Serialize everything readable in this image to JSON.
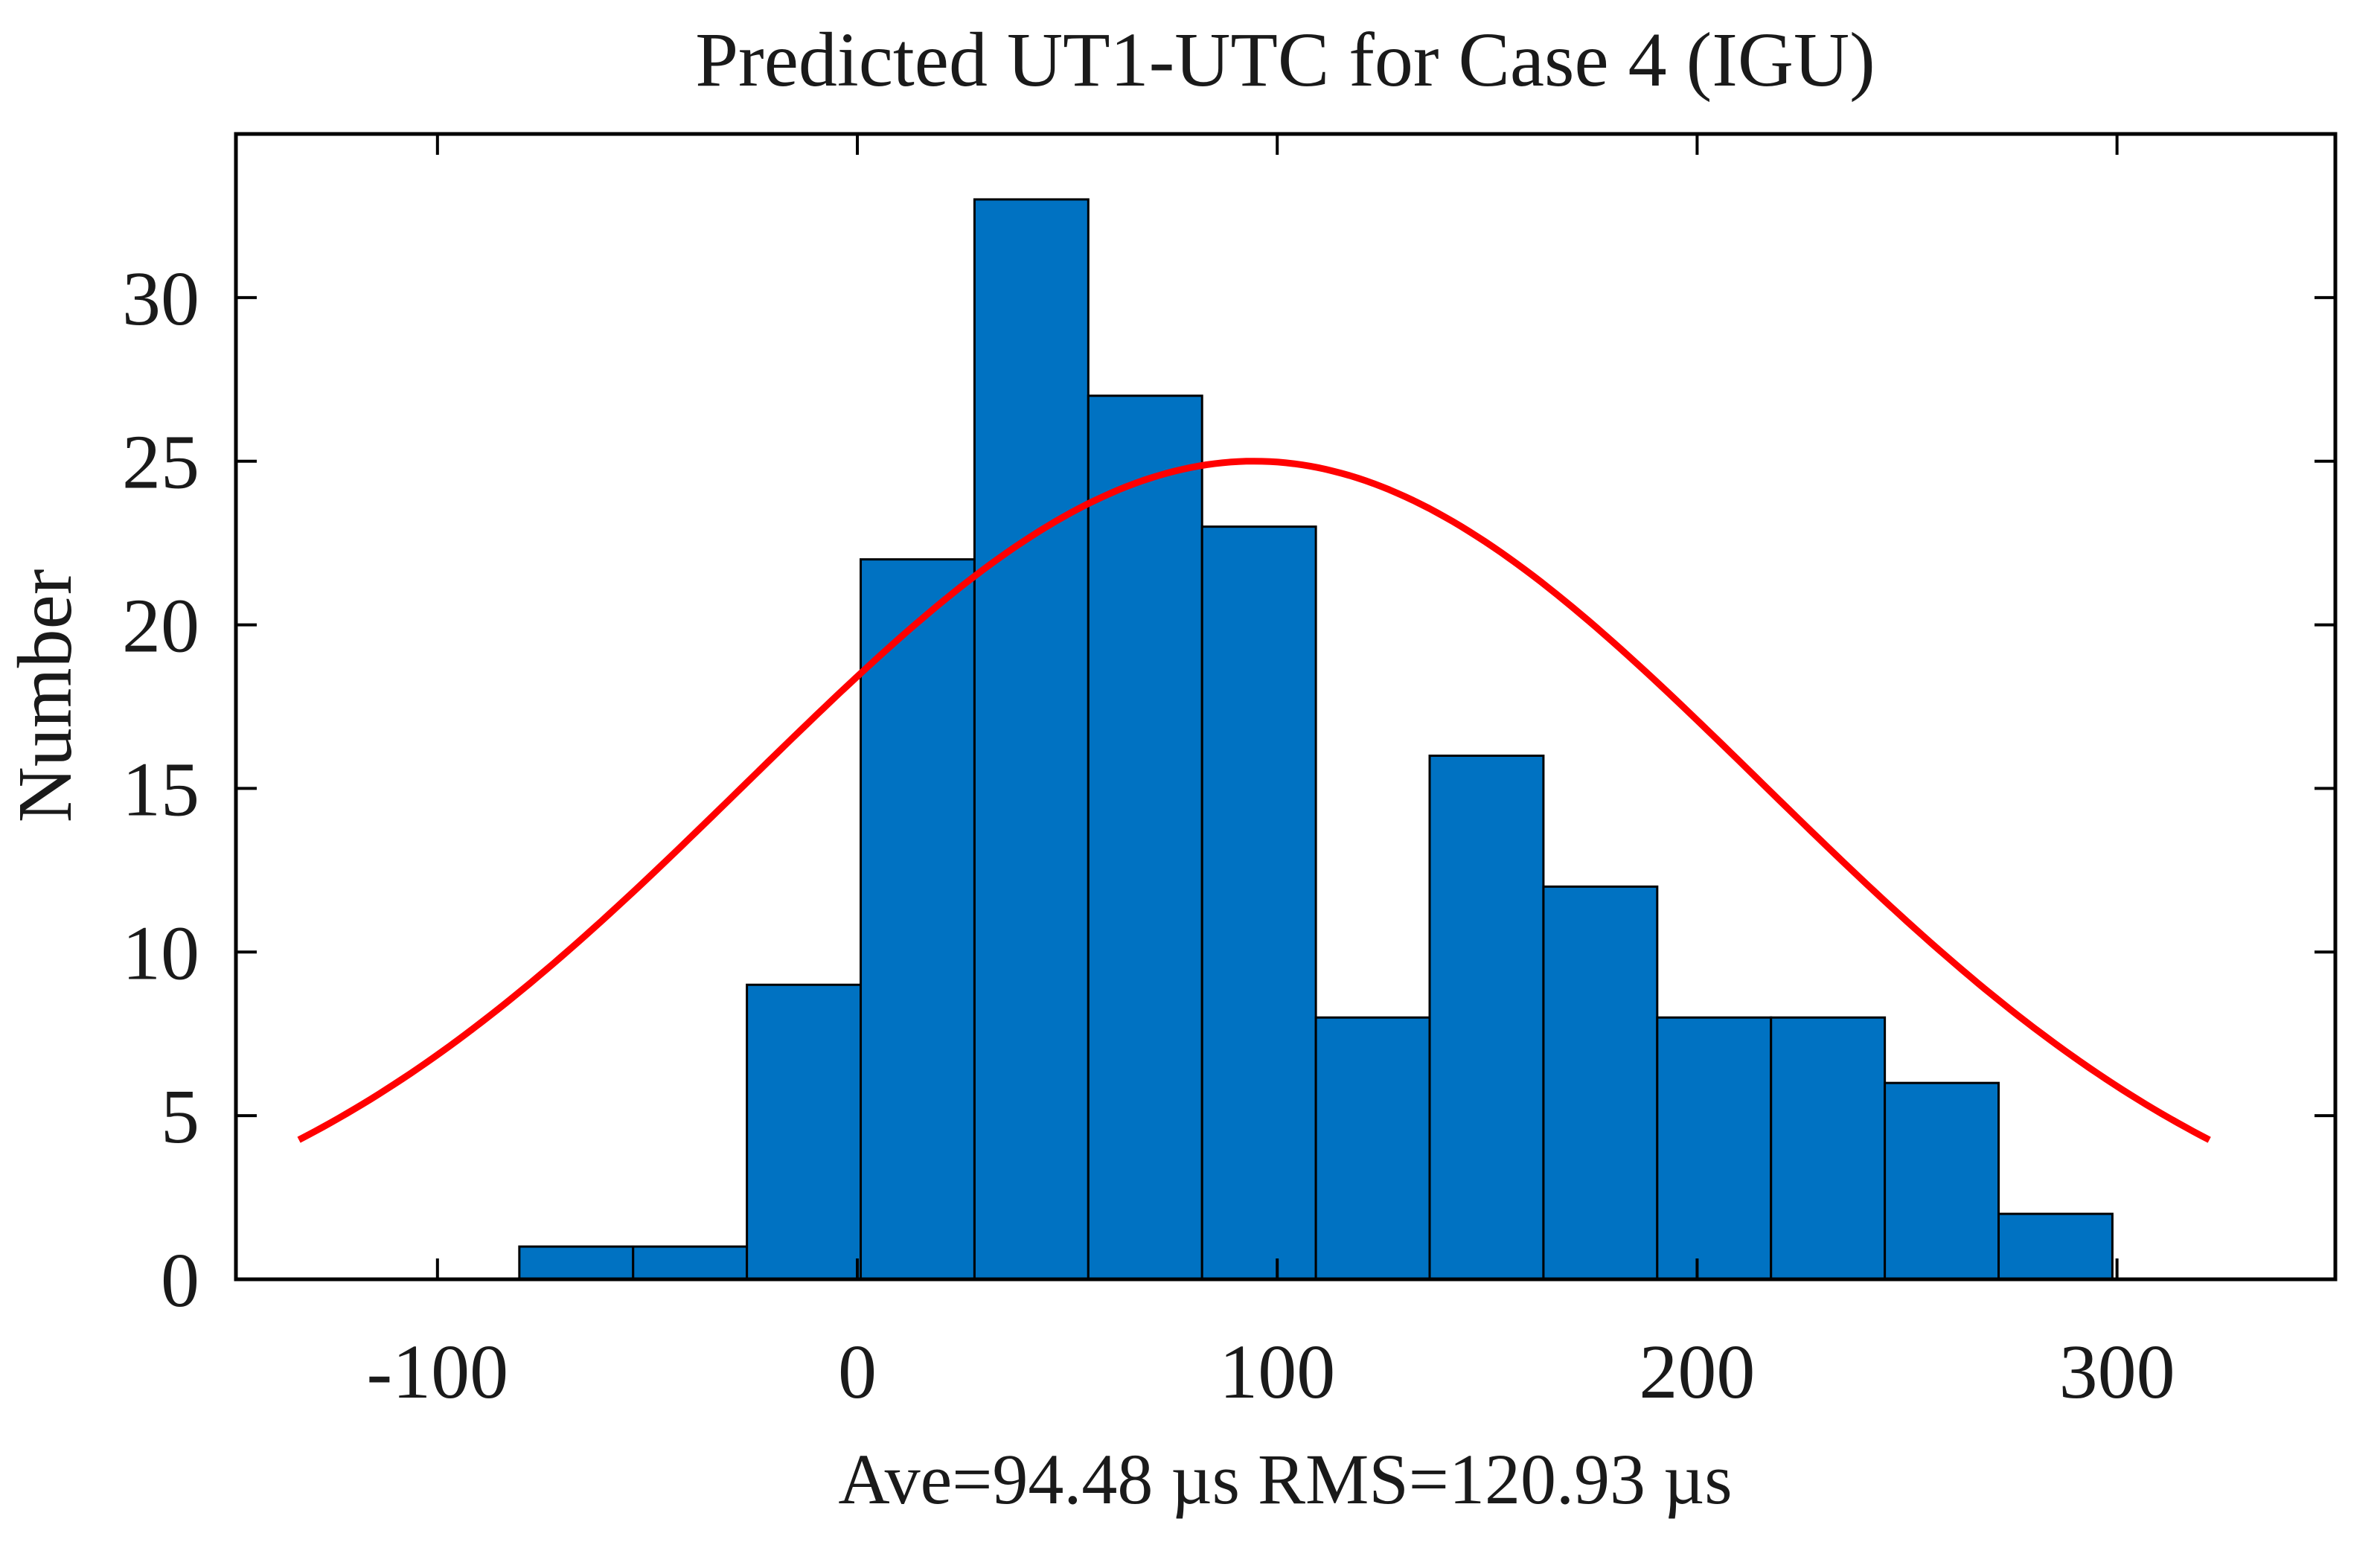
{
  "chart_data": {
    "type": "bar",
    "subtype": "histogram-with-normal-fit",
    "title": "Predicted UT1-UTC for Case 4 (IGU)",
    "xlabel": "Ave=94.48 µs  RMS=120.93 µs",
    "ylabel": "Number",
    "xlim": [
      -148,
      352
    ],
    "ylim": [
      0,
      35
    ],
    "xticks": [
      -100,
      0,
      100,
      200,
      300
    ],
    "xtick_labels": [
      "-100",
      "0",
      "100",
      "200",
      "300"
    ],
    "yticks": [
      0,
      5,
      10,
      15,
      20,
      25,
      30
    ],
    "ytick_labels": [
      "0",
      "5",
      "10",
      "15",
      "20",
      "25",
      "30"
    ],
    "bin_edges": [
      -80.5,
      -53.4,
      -26.3,
      0.8,
      27.9,
      55.0,
      82.1,
      109.2,
      136.3,
      163.4,
      190.5,
      217.6,
      244.7,
      271.8,
      298.9
    ],
    "values": [
      1,
      1,
      9,
      22,
      33,
      27,
      23,
      8,
      16,
      12,
      8,
      8,
      6,
      2
    ],
    "fit": {
      "name": "normal fit",
      "mean": 94.48,
      "std": 120.93,
      "peak": 25.0,
      "x_range": [
        -133,
        322
      ]
    },
    "colors": {
      "bar_fill": "#0072c2",
      "bar_edge": "#000000",
      "fit_line": "#ff0000",
      "axes": "#000000",
      "text": "#1a1a1a",
      "background": "#ffffff"
    },
    "grid": false,
    "legend": "none"
  }
}
